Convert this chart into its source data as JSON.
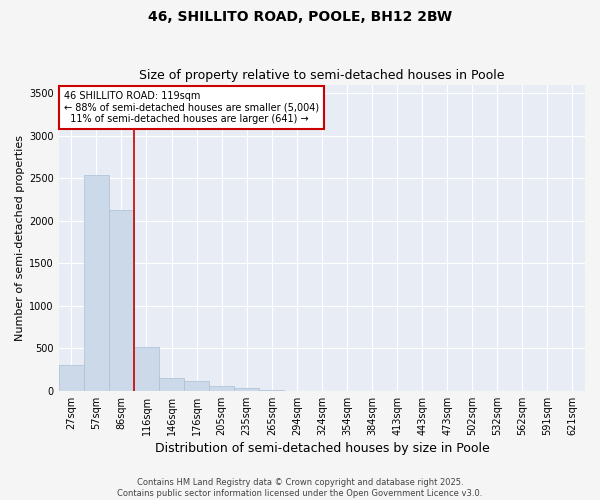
{
  "title": "46, SHILLITO ROAD, POOLE, BH12 2BW",
  "subtitle": "Size of property relative to semi-detached houses in Poole",
  "xlabel": "Distribution of semi-detached houses by size in Poole",
  "ylabel": "Number of semi-detached properties",
  "bar_color": "#ccd9e8",
  "bar_edge_color": "#aabfd8",
  "plot_bg_color": "#e8edf5",
  "fig_bg_color": "#f5f5f5",
  "grid_color": "#ffffff",
  "categories": [
    "27sqm",
    "57sqm",
    "86sqm",
    "116sqm",
    "146sqm",
    "176sqm",
    "205sqm",
    "235sqm",
    "265sqm",
    "294sqm",
    "324sqm",
    "354sqm",
    "384sqm",
    "413sqm",
    "443sqm",
    "473sqm",
    "502sqm",
    "532sqm",
    "562sqm",
    "591sqm",
    "621sqm"
  ],
  "values": [
    300,
    2540,
    2130,
    520,
    155,
    120,
    55,
    30,
    5,
    2,
    1,
    0,
    0,
    0,
    0,
    0,
    0,
    0,
    0,
    0,
    0
  ],
  "ylim": [
    0,
    3600
  ],
  "yticks": [
    0,
    500,
    1000,
    1500,
    2000,
    2500,
    3000,
    3500
  ],
  "red_line_bin_index": 3,
  "annotation_text": "46 SHILLITO ROAD: 119sqm\n← 88% of semi-detached houses are smaller (5,004)\n  11% of semi-detached houses are larger (641) →",
  "annotation_box_color": "#ffffff",
  "annotation_box_edge": "#cc0000",
  "red_line_color": "#cc0000",
  "footer1": "Contains HM Land Registry data © Crown copyright and database right 2025.",
  "footer2": "Contains public sector information licensed under the Open Government Licence v3.0.",
  "title_fontsize": 10,
  "subtitle_fontsize": 9,
  "axis_label_fontsize": 8,
  "tick_fontsize": 7,
  "annotation_fontsize": 7,
  "footer_fontsize": 6
}
